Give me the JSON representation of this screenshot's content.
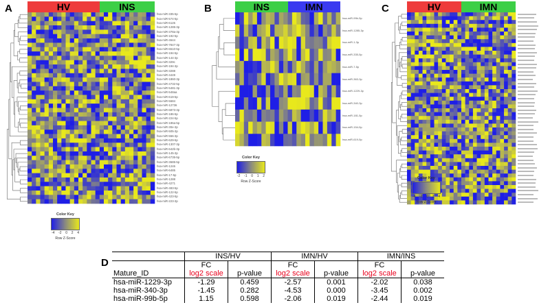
{
  "panels": {
    "A": {
      "label": "A",
      "groups": [
        {
          "name": "HV",
          "color": "#ee3b3b",
          "cols": 17
        },
        {
          "name": "INS",
          "color": "#3ccf46",
          "cols": 13
        }
      ],
      "rows": [
        "hsa-miR-335-5p",
        "hsa-miR-574-5p",
        "hsa-miR-6126",
        "hsa-miR-1285-3p",
        "hsa-miR-378a-3p",
        "hsa-miR-192-5p",
        "hsa-miR-4644",
        "hsa-miR-7847-3p",
        "hsa-miR-6510-5p",
        "hsa-miR-194-5p",
        "hsa-miR-144-3p",
        "hsa-miR-329c",
        "hsa-miR-194-3p",
        "hsa-miR-3288",
        "hsa-miR-4449",
        "hsa-miR-1860-3p",
        "hsa-miR-4732-5p",
        "hsa-miR-5481-3p",
        "hsa-miR-548aa",
        "hsa-miR-619-5p",
        "hsa-miR-5684",
        "hsa-miR-12736",
        "hsa-miR-6873-3p",
        "hsa-miR-186-5p",
        "hsa-miR-224-5p",
        "hsa-miR-186a-5p",
        "hsa-miR-30e-3p",
        "hsa-miR-505-3p",
        "hsa-miR-556-3p",
        "hsa-miR-629-5p",
        "hsa-miR-1307-3p",
        "hsa-miR-642b-3p",
        "hsa-miR-145-3p",
        "hsa-miR-6735-5p",
        "hsa-miR-3685-5p",
        "hsa-miR-1246",
        "hsa-miR-6485",
        "hsa-miR-17-5p",
        "hsa-miR-1288",
        "hsa-miR-4271",
        "hsa-miR-483-5p",
        "hsa-miR-122-5p",
        "hsa-miR-423-5p",
        "hsa-miR-223-3p"
      ],
      "color_key": {
        "title": "Color Key",
        "ticks": [
          "-4",
          "-2",
          "0",
          "2",
          "4"
        ],
        "xlabel": "Row Z-Score"
      }
    },
    "B": {
      "label": "B",
      "groups": [
        {
          "name": "INS",
          "color": "#3ccf46",
          "cols": 12
        },
        {
          "name": "IMN",
          "color": "#3a3af0",
          "cols": 12
        }
      ],
      "rows": [
        "hsa-miR-99b-5p",
        "hsa-miR-1285-3p",
        "hsa-miR-1-3p",
        "hsa-miR-335-5p",
        "hsa-miR-7-5p",
        "hsa-miR-363-3p",
        "hsa-miR-1229-3p",
        "hsa-miR-340-3p",
        "hsa-miR-181-5p",
        "hsa-miR-154-5p",
        "hsa-miR-619-5p"
      ],
      "color_key": {
        "title": "Color Key",
        "ticks": [
          "-2",
          "-1",
          "0",
          "1",
          "2"
        ],
        "xlabel": "Row Z-Score"
      }
    },
    "C": {
      "label": "C",
      "groups": [
        {
          "name": "HV",
          "color": "#ee3b3b",
          "cols": 14
        },
        {
          "name": "IMN",
          "color": "#3ccf46",
          "cols": 14
        }
      ],
      "row_count": 50,
      "color_key": {
        "title": "Color Key",
        "ticks": [
          "-4",
          "-2",
          "0",
          "2",
          "4"
        ],
        "xlabel": "Row Z-Score"
      }
    }
  },
  "table": {
    "label": "D",
    "comparisons": [
      "INS/HV",
      "IMN/HV",
      "IMN/INS"
    ],
    "fc_label": "FC",
    "fc_scale": "log2 scale",
    "pvalue_label": "p-value",
    "id_header": "Mature_ID",
    "rows": [
      {
        "id": "hsa-miR-1229-3p",
        "values": [
          "-1.29",
          "0.459",
          "-2.57",
          "0.001",
          "-2.02",
          "0.038"
        ]
      },
      {
        "id": "hsa-miR-340-3p",
        "values": [
          "-1.45",
          "0.282",
          "-4.53",
          "0.000",
          "-3.45",
          "0.002"
        ]
      },
      {
        "id": "hsa-miR-99b-5p",
        "values": [
          "1.15",
          "0.598",
          "-2.06",
          "0.019",
          "-2.44",
          "0.019"
        ]
      }
    ]
  }
}
